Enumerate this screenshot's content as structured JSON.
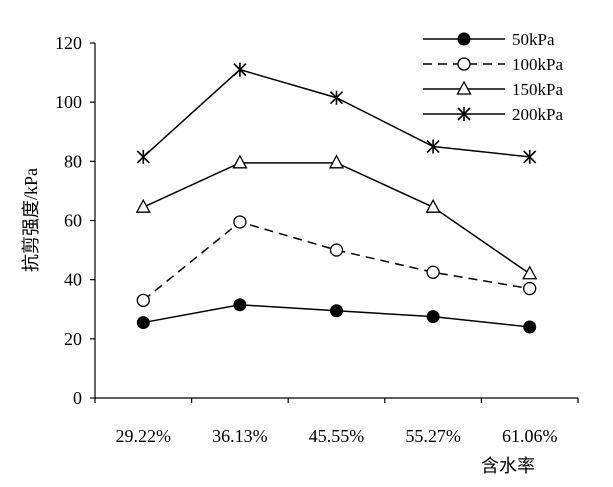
{
  "chart_data": {
    "type": "line",
    "categories": [
      "29.22%",
      "36.13%",
      "45.55%",
      "55.27%",
      "61.06%"
    ],
    "xlabel": "含水率",
    "ylabel": "抗剪强度/kPa",
    "ylim": [
      0,
      120
    ],
    "yticks": [
      0,
      20,
      40,
      60,
      80,
      100,
      120
    ],
    "grid": false,
    "legend_position": "top-right",
    "series": [
      {
        "name": "50kPa",
        "values": [
          25.5,
          31.5,
          29.5,
          27.5,
          24.0
        ],
        "marker": "filled-circle",
        "line_style": "solid"
      },
      {
        "name": "100kPa",
        "values": [
          33.0,
          59.5,
          50.0,
          42.5,
          37.0
        ],
        "marker": "open-circle",
        "line_style": "dashed"
      },
      {
        "name": "150kPa",
        "values": [
          64.5,
          79.5,
          79.5,
          64.5,
          42.0
        ],
        "marker": "open-triangle",
        "line_style": "solid"
      },
      {
        "name": "200kPa",
        "values": [
          81.5,
          111.0,
          101.5,
          85.0,
          81.5
        ],
        "marker": "asterisk",
        "line_style": "solid"
      }
    ]
  }
}
